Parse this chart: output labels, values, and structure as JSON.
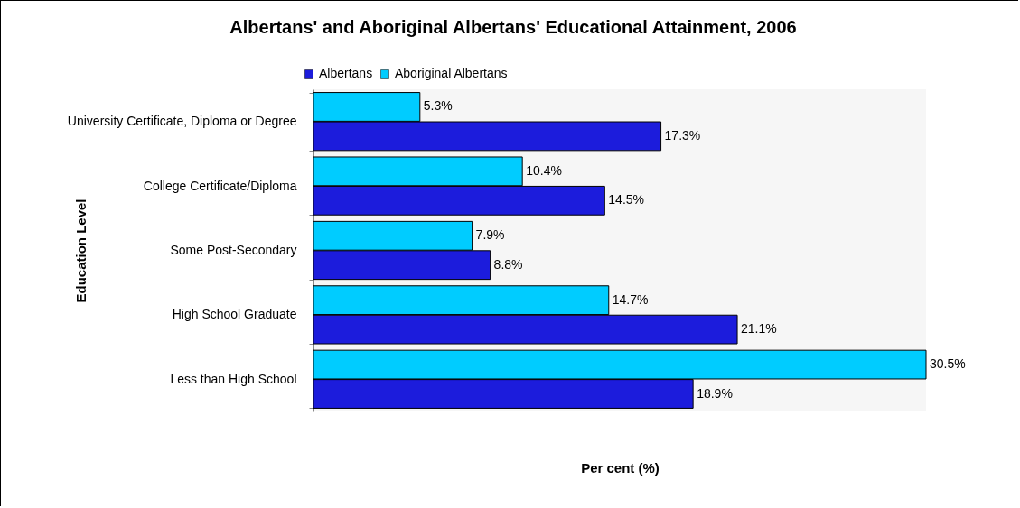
{
  "chart_data": {
    "type": "bar",
    "orientation": "horizontal",
    "title": "Albertans' and Aboriginal Albertans' Educational Attainment, 2006",
    "xlabel": "Per cent (%)",
    "ylabel": "Education Level",
    "categories": [
      "University Certificate, Diploma or Degree",
      "College Certificate/Diploma",
      "Some Post-Secondary",
      "High School Graduate",
      "Less than High School"
    ],
    "series": [
      {
        "name": "Albertans",
        "color": "#1c1cdc",
        "values": [
          17.3,
          14.5,
          8.8,
          21.1,
          18.9
        ],
        "value_labels": [
          "17.3%",
          "14.5%",
          "8.8%",
          "21.1%",
          "18.9%"
        ]
      },
      {
        "name": "Aboriginal Albertans",
        "color": "#00ccff",
        "values": [
          5.3,
          10.4,
          7.9,
          14.7,
          30.5
        ],
        "value_labels": [
          "5.3%",
          "10.4%",
          "7.9%",
          "14.7%",
          "30.5%"
        ]
      }
    ],
    "relative": false,
    "grid": false,
    "legend": "top",
    "tick_labels": "y"
  }
}
